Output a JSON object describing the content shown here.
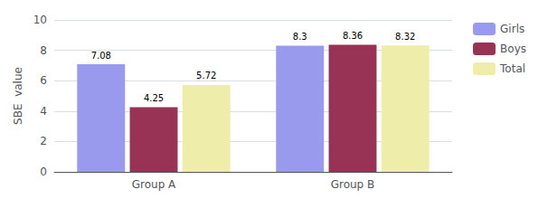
{
  "chart_data": {
    "type": "bar",
    "categories": [
      "Group A",
      "Group B"
    ],
    "series": [
      {
        "name": "Girls",
        "color": "#9999ee",
        "values": [
          7.08,
          8.3
        ]
      },
      {
        "name": "Boys",
        "color": "#993355",
        "values": [
          4.25,
          8.36
        ]
      },
      {
        "name": "Total",
        "color": "#eeeeaa",
        "values": [
          5.72,
          8.32
        ]
      }
    ],
    "ylabel": "SBE  value",
    "ylim": [
      0,
      10
    ],
    "yticks": [
      0,
      2,
      4,
      6,
      8,
      10
    ],
    "grid": true,
    "legend": "right",
    "data_labels": true
  }
}
